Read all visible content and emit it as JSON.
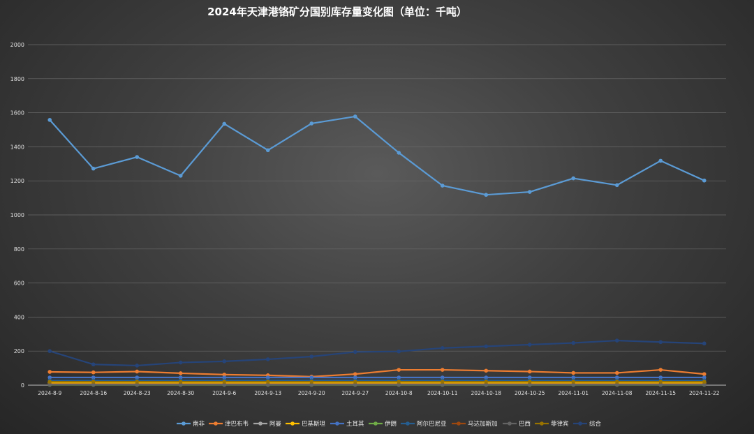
{
  "chart_data": {
    "type": "line",
    "title": "2024年天津港铬矿分国别库存量变化图（单位：千吨）",
    "xlabel": "",
    "ylabel": "",
    "ylim": [
      0,
      2000
    ],
    "yticks": [
      0,
      200,
      400,
      600,
      800,
      1000,
      1200,
      1400,
      1600,
      1800,
      2000
    ],
    "grid": true,
    "legend_position": "bottom",
    "categories": [
      "2024-8-9",
      "2024-8-16",
      "2024-8-23",
      "2024-8-30",
      "2024-9-6",
      "2024-9-13",
      "2024-9-20",
      "2024-9-27",
      "2024-10-8",
      "2024-10-11",
      "2024-10-18",
      "2024-10-25",
      "2024-11-01",
      "2024-11-08",
      "2024-11-15",
      "2024-11-22"
    ],
    "series": [
      {
        "name": "南非",
        "color": "#5b9bd5",
        "values": [
          1558,
          1272,
          1340,
          1230,
          1535,
          1380,
          1537,
          1578,
          1365,
          1172,
          1118,
          1135,
          1215,
          1175,
          1318,
          1202
        ]
      },
      {
        "name": "津巴布韦",
        "color": "#ed7d31",
        "values": [
          78,
          75,
          80,
          70,
          62,
          58,
          50,
          65,
          90,
          90,
          85,
          80,
          72,
          72,
          90,
          65
        ]
      },
      {
        "name": "阿曼",
        "color": "#a5a5a5",
        "values": [
          8,
          8,
          8,
          8,
          8,
          8,
          8,
          8,
          8,
          8,
          8,
          8,
          8,
          8,
          8,
          8
        ]
      },
      {
        "name": "巴基斯坦",
        "color": "#ffc000",
        "values": [
          15,
          15,
          15,
          15,
          15,
          15,
          15,
          15,
          15,
          15,
          15,
          15,
          15,
          15,
          15,
          15
        ]
      },
      {
        "name": "土耳其",
        "color": "#4472c4",
        "values": [
          45,
          45,
          45,
          45,
          45,
          45,
          45,
          45,
          45,
          45,
          45,
          45,
          45,
          45,
          45,
          45
        ]
      },
      {
        "name": "伊朗",
        "color": "#70ad47",
        "values": [
          2,
          2,
          2,
          2,
          2,
          2,
          2,
          2,
          2,
          2,
          2,
          2,
          2,
          2,
          2,
          2
        ]
      },
      {
        "name": "阿尔巴尼亚",
        "color": "#255e91",
        "values": [
          28,
          28,
          28,
          28,
          28,
          28,
          28,
          28,
          28,
          28,
          28,
          28,
          28,
          28,
          28,
          28
        ]
      },
      {
        "name": "马达加斯加",
        "color": "#9e480e",
        "values": [
          5,
          5,
          5,
          5,
          5,
          5,
          5,
          5,
          5,
          5,
          5,
          5,
          5,
          5,
          5,
          5
        ]
      },
      {
        "name": "巴西",
        "color": "#636363",
        "values": [
          3,
          3,
          3,
          3,
          3,
          3,
          3,
          3,
          3,
          3,
          3,
          3,
          3,
          3,
          3,
          3
        ]
      },
      {
        "name": "菲律宾",
        "color": "#997300",
        "values": [
          20,
          20,
          20,
          20,
          20,
          20,
          20,
          20,
          20,
          20,
          20,
          20,
          20,
          20,
          20,
          20
        ]
      },
      {
        "name": "综合",
        "color": "#264478",
        "values": [
          200,
          122,
          115,
          133,
          140,
          152,
          168,
          195,
          198,
          218,
          228,
          238,
          248,
          262,
          253,
          245
        ]
      }
    ]
  }
}
